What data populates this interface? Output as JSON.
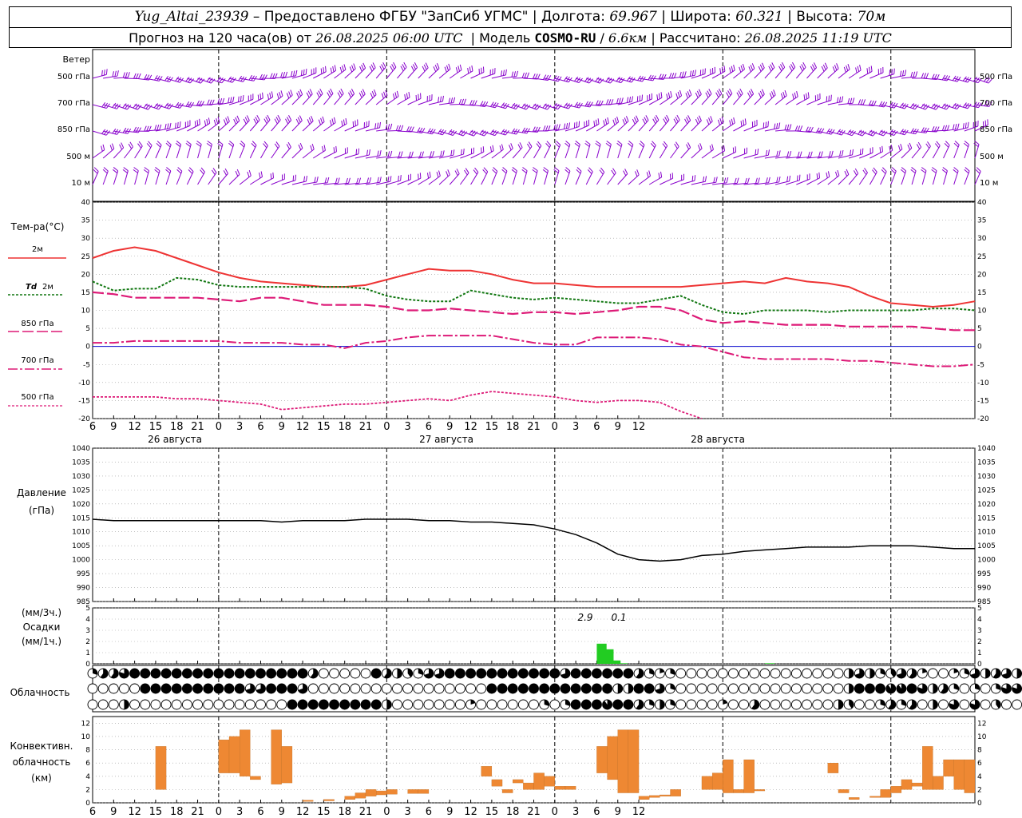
{
  "header": {
    "station": "Yug_Altai_23939",
    "provider": "– Предоставлено ФГБУ \"ЗапСиб УГМС\"",
    "lon_label": "Долгота:",
    "lon": "69.967",
    "lat_label": "Широта:",
    "lat": "60.321",
    "alt_label": "Высота:",
    "alt": "70м",
    "forecast_prefix": "Прогноз на 120 часа(ов) от",
    "forecast_time": "26.08.2025 06:00 UTC",
    "model_label": "Модель",
    "model": "COSMO-RU",
    "model_res": "6.6км",
    "calc_label": "Рассчитано:",
    "calc_time": "26.08.2025 11:19 UTC"
  },
  "labels": {
    "wind": "Ветер",
    "wind_levels": [
      "500 гПа",
      "700 гПа",
      "850 гПа",
      "500 м",
      "10 м"
    ],
    "temp": "Тем-ра(°С)",
    "t2m": "2м",
    "td_sym": "Td",
    "td_lvl": "2м",
    "t850": "850 гПа",
    "t700": "700 гПа",
    "t500": "500 гПа",
    "pressure": "Давление",
    "pressure_unit": "(гПа)",
    "precip_unit3": "(мм/3ч.)",
    "precip": "Осадки",
    "precip_unit1": "(мм/1ч.)",
    "precip_note1": "2.9",
    "precip_note2": "0.1",
    "cloud": "Облачность",
    "conv1": "Конвективн.",
    "conv2": "облачность",
    "conv3": "(км)"
  },
  "time_axis": {
    "hour_ticks": [
      "6",
      "9",
      "12",
      "15",
      "18",
      "21",
      "0",
      "3",
      "6",
      "9",
      "12",
      "15",
      "18",
      "21",
      "0",
      "3",
      "6",
      "9",
      "12",
      "15",
      "18",
      "21",
      "0",
      "3",
      "6",
      "9",
      "12"
    ],
    "dates": [
      "26 августа",
      "27 августа",
      "28 августа"
    ]
  },
  "colors": {
    "t2m": "#ee3333",
    "td": "#117711",
    "t850": "#dd1a77",
    "wind": "#8800cc",
    "precip": "#22cc22",
    "conv": "#ee8833",
    "zero": "#0000cc"
  },
  "chart_data": [
    {
      "type": "line",
      "title": "Тем-ра(°С)",
      "x_unit": "hours from 26.08.2025 06:00 UTC",
      "ylim": [
        -20,
        40
      ],
      "y_ticks": [
        -20,
        -15,
        -10,
        -5,
        0,
        5,
        10,
        15,
        20,
        25,
        30,
        35,
        40
      ],
      "series": [
        {
          "name": "2м",
          "x": [
            0,
            3,
            6,
            9,
            12,
            15,
            18,
            21,
            24,
            27,
            30,
            33,
            36,
            39,
            42,
            45,
            48,
            51,
            54,
            57,
            60,
            63,
            66,
            69,
            72,
            75,
            78,
            81,
            84,
            87,
            90,
            93,
            96,
            99,
            102,
            105,
            108,
            111,
            114,
            117,
            120,
            123,
            126
          ],
          "values": [
            24.5,
            26.5,
            27.5,
            26.5,
            24.5,
            22.5,
            20.5,
            19,
            18,
            17.5,
            17,
            16.5,
            16.5,
            17,
            18.5,
            20,
            21.5,
            21,
            21,
            20,
            18.5,
            17.5,
            17.5,
            17,
            16.5,
            16.5,
            16.5,
            16.5,
            16.5,
            17,
            17.5,
            18,
            17.5,
            19,
            18,
            17.5,
            16.5,
            14,
            12,
            11.5,
            11,
            11.5,
            12.5
          ]
        },
        {
          "name": "Td 2м",
          "x": [
            0,
            3,
            6,
            9,
            12,
            15,
            18,
            21,
            24,
            27,
            30,
            33,
            36,
            39,
            42,
            45,
            48,
            51,
            54,
            57,
            60,
            63,
            66,
            69,
            72,
            75,
            78,
            81,
            84,
            87,
            90,
            93,
            96,
            99,
            102,
            105,
            108,
            111,
            114,
            117,
            120,
            123,
            126
          ],
          "values": [
            18,
            15.5,
            16,
            16,
            19,
            18.5,
            17,
            16.5,
            16.5,
            16.5,
            16.5,
            16.5,
            16.5,
            16,
            14,
            13,
            12.5,
            12.5,
            15.5,
            14.5,
            13.5,
            13,
            13.5,
            13,
            12.5,
            12,
            12,
            13,
            14,
            11.5,
            9.5,
            9,
            10,
            10,
            10,
            9.5,
            10,
            10,
            10,
            10,
            10.5,
            10.5,
            10
          ]
        },
        {
          "name": "850 гПа",
          "x": [
            0,
            3,
            6,
            9,
            12,
            15,
            18,
            21,
            24,
            27,
            30,
            33,
            36,
            39,
            42,
            45,
            48,
            51,
            54,
            57,
            60,
            63,
            66,
            69,
            72,
            75,
            78,
            81,
            84,
            87,
            90,
            93,
            96,
            99,
            102,
            105,
            108,
            111,
            114,
            117,
            120,
            123,
            126
          ],
          "values": [
            15,
            14.5,
            13.5,
            13.5,
            13.5,
            13.5,
            13,
            12.5,
            13.5,
            13.5,
            12.5,
            11.5,
            11.5,
            11.5,
            11,
            10,
            10,
            10.5,
            10,
            9.5,
            9,
            9.5,
            9.5,
            9,
            9.5,
            10,
            11,
            11,
            10,
            7.5,
            6.5,
            7,
            6.5,
            6,
            6,
            6,
            5.5,
            5.5,
            5.5,
            5.5,
            5,
            4.5,
            4.5
          ]
        },
        {
          "name": "700 гПа",
          "x": [
            0,
            3,
            6,
            9,
            12,
            15,
            18,
            21,
            24,
            27,
            30,
            33,
            36,
            39,
            42,
            45,
            48,
            51,
            54,
            57,
            60,
            63,
            66,
            69,
            72,
            75,
            78,
            81,
            84,
            87,
            90,
            93,
            96,
            99,
            102,
            105,
            108,
            111,
            114,
            117,
            120,
            123,
            126
          ],
          "values": [
            1,
            1,
            1.5,
            1.5,
            1.5,
            1.5,
            1.5,
            1,
            1,
            1,
            0.5,
            0.5,
            -0.5,
            1,
            1.5,
            2.5,
            3,
            3,
            3,
            3,
            2,
            1,
            0.5,
            0.5,
            2.5,
            2.5,
            2.5,
            2,
            0.5,
            0,
            -1.5,
            -3,
            -3.5,
            -3.5,
            -3.5,
            -3.5,
            -4,
            -4,
            -4.5,
            -5,
            -5.5,
            -5.5,
            -5
          ]
        },
        {
          "name": "500 гПа",
          "x": [
            0,
            3,
            6,
            9,
            12,
            15,
            18,
            21,
            24,
            27,
            30,
            33,
            36,
            39,
            42,
            45,
            48,
            51,
            54,
            57,
            60,
            63,
            66,
            69,
            72,
            75,
            78,
            81,
            84,
            87,
            90,
            93,
            96,
            99,
            102,
            105,
            108,
            111,
            114,
            117,
            120,
            123,
            126
          ],
          "values": [
            -14,
            -14,
            -14,
            -14,
            -14.5,
            -14.5,
            -15,
            -15.5,
            -16,
            -17.5,
            -17,
            -16.5,
            -16,
            -16,
            -15.5,
            -15,
            -14.5,
            -15,
            -13.5,
            -12.5,
            -13,
            -13.5,
            -14,
            -15,
            -15.5,
            -15,
            -15,
            -15.5,
            -18,
            -20,
            null,
            null,
            null,
            null,
            null,
            null,
            null,
            null,
            null,
            null,
            null,
            null,
            null
          ]
        }
      ]
    },
    {
      "type": "line",
      "title": "Давление",
      "ylabel": "(гПа)",
      "ylim": [
        985,
        1040
      ],
      "y_ticks": [
        985,
        990,
        995,
        1000,
        1005,
        1010,
        1015,
        1020,
        1025,
        1030,
        1035,
        1040
      ],
      "series": [
        {
          "name": "Давление",
          "x": [
            0,
            3,
            6,
            9,
            12,
            15,
            18,
            21,
            24,
            27,
            30,
            33,
            36,
            39,
            42,
            45,
            48,
            51,
            54,
            57,
            60,
            63,
            66,
            69,
            72,
            75,
            78,
            81,
            84,
            87,
            90,
            93,
            96,
            99,
            102,
            105,
            108,
            111,
            114,
            117,
            120,
            123,
            126
          ],
          "values": [
            1014.5,
            1014,
            1014,
            1014,
            1014,
            1014,
            1014,
            1014,
            1014,
            1013.5,
            1014,
            1014,
            1014,
            1014.5,
            1014.5,
            1014.5,
            1014,
            1014,
            1013.5,
            1013.5,
            1013,
            1012.5,
            1011,
            1009,
            1006,
            1002,
            1000,
            999.5,
            1000,
            1001.5,
            1002,
            1003,
            1003.5,
            1004,
            1004.5,
            1004.5,
            1004.5,
            1005,
            1005,
            1005,
            1004.5,
            1004,
            1004
          ]
        }
      ]
    },
    {
      "type": "bar",
      "title": "Осадки",
      "ylim": [
        0,
        5
      ],
      "y_ticks": [
        0,
        1,
        2,
        3,
        4,
        5
      ],
      "x": [
        72,
        73,
        74,
        75,
        81,
        82,
        83,
        84,
        85,
        86,
        87,
        88,
        89,
        90,
        91,
        92,
        93,
        94,
        95,
        96
      ],
      "values": [
        1.8,
        1.3,
        0.3,
        0.05,
        0,
        0,
        0,
        0,
        0,
        0,
        0,
        0,
        0,
        0,
        0,
        0,
        0,
        0,
        0,
        0.05
      ]
    },
    {
      "type": "bar",
      "title": "Конвективн. облачность",
      "ylabel": "(км)",
      "ylim": [
        0,
        13
      ],
      "y_ticks": [
        0,
        2,
        4,
        6,
        8,
        10,
        12
      ],
      "bars": [
        {
          "x": 9,
          "base": 2,
          "top": 8.5
        },
        {
          "x": 18,
          "base": 4.5,
          "top": 9.5
        },
        {
          "x": 19.5,
          "base": 4.5,
          "top": 10
        },
        {
          "x": 21,
          "base": 4,
          "top": 11
        },
        {
          "x": 22.5,
          "base": 3.5,
          "top": 4
        },
        {
          "x": 25.5,
          "base": 2.8,
          "top": 11
        },
        {
          "x": 27,
          "base": 3,
          "top": 8.5
        },
        {
          "x": 30,
          "base": 0.2,
          "top": 0.4
        },
        {
          "x": 33,
          "base": 0.3,
          "top": 0.5
        },
        {
          "x": 36,
          "base": 0.5,
          "top": 1
        },
        {
          "x": 37.5,
          "base": 0.7,
          "top": 1.5
        },
        {
          "x": 39,
          "base": 1,
          "top": 2
        },
        {
          "x": 40.5,
          "base": 1.2,
          "top": 1.8
        },
        {
          "x": 42,
          "base": 1.3,
          "top": 2
        },
        {
          "x": 45,
          "base": 1.4,
          "top": 2
        },
        {
          "x": 46.5,
          "base": 1.4,
          "top": 2
        },
        {
          "x": 55.5,
          "base": 4,
          "top": 5.5
        },
        {
          "x": 57,
          "base": 2.5,
          "top": 3.5
        },
        {
          "x": 58.5,
          "base": 1.5,
          "top": 2
        },
        {
          "x": 60,
          "base": 3,
          "top": 3.5
        },
        {
          "x": 61.5,
          "base": 2,
          "top": 3
        },
        {
          "x": 63,
          "base": 2,
          "top": 4.5
        },
        {
          "x": 64.5,
          "base": 2.5,
          "top": 4
        },
        {
          "x": 66,
          "base": 2,
          "top": 2.5
        },
        {
          "x": 67.5,
          "base": 2,
          "top": 2.5
        },
        {
          "x": 72,
          "base": 4.5,
          "top": 8.5
        },
        {
          "x": 73.5,
          "base": 3.5,
          "top": 10
        },
        {
          "x": 75,
          "base": 1.5,
          "top": 11
        },
        {
          "x": 76.5,
          "base": 1.5,
          "top": 11
        },
        {
          "x": 78,
          "base": 0.5,
          "top": 1
        },
        {
          "x": 79.5,
          "base": 0.8,
          "top": 1.1
        },
        {
          "x": 81,
          "base": 1,
          "top": 1.2
        },
        {
          "x": 82.5,
          "base": 1,
          "top": 2
        },
        {
          "x": 87,
          "base": 2,
          "top": 4
        },
        {
          "x": 88.5,
          "base": 2,
          "top": 4.5
        },
        {
          "x": 90,
          "base": 1.5,
          "top": 6.5
        },
        {
          "x": 91.5,
          "base": 1.5,
          "top": 2
        },
        {
          "x": 93,
          "base": 1.5,
          "top": 6.5
        },
        {
          "x": 94.5,
          "base": 1.8,
          "top": 2
        },
        {
          "x": 105,
          "base": 4.5,
          "top": 6
        },
        {
          "x": 106.5,
          "base": 1.5,
          "top": 2
        },
        {
          "x": 108,
          "base": 0.5,
          "top": 0.8
        },
        {
          "x": 111,
          "base": 0.8,
          "top": 1
        },
        {
          "x": 112.5,
          "base": 0.8,
          "top": 2
        },
        {
          "x": 114,
          "base": 1.5,
          "top": 2.5
        },
        {
          "x": 115.5,
          "base": 2,
          "top": 3.5
        },
        {
          "x": 117,
          "base": 2.5,
          "top": 3
        },
        {
          "x": 118.5,
          "base": 2,
          "top": 8.5
        },
        {
          "x": 120,
          "base": 2,
          "top": 4
        },
        {
          "x": 121.5,
          "base": 4,
          "top": 6.5
        },
        {
          "x": 123,
          "base": 2,
          "top": 6.5
        },
        {
          "x": 124.5,
          "base": 1.5,
          "top": 6.5
        }
      ]
    },
    {
      "type": "table",
      "title": "Облачность",
      "note": "0 = clear, 1 = overcast; rows top to bottom",
      "rows": [
        "0.3,0.6,0.6,0.8,1,1,1,1,1,1,1,1,1,1,1,1,1,1,1,1,1,0.6,0,0,0,0,0,1,0.6,0.5,0.4,0.3,0.7,0.7,1,1,1,1,1,1,1,1,1,1,1,0.7,1,1,1,1,1,1,0.6,0.3,0.2,0.3,0,0,0,0,0,0,0,0,0,0,0,0,0,0,0,0,0.5,0.7,0.5,0.3,0.4,0.7,0.6,0.2,0,0,0.2,0.3,0.7,0.5,0.6,0.7,0.5,0.8",
        "0,0,0,0,0,1,1,1,1,1,1,1,1,1,1,0.7,0.7,1,1,1,0.7,0,0,0,0,0,0,0,0,0,0,0,0,0,0,0,0,0,1,1,1,1,1,1,1,1,1,1,1,1,0.5,0.5,1,1,0.7,0.3,0,0,0,0,0,0,0,0,0,0,0,0,0,0,0,0,0.5,1,1,1,0.9,0.9,1,0.8,0.5,0.6,0.3,0,0.3,0,0.3,0.8,0.8,0.8",
        "0,0,0,0.5,0,0,0,0,0,0,0,0,0,0,0,0,0,0,0,1,1,1,1,1,1,1,1,1,0.5,0,0,0,0,0,0,0,0.2,0,0,0,0,0,0,0.3,0,0.3,1,1,1,0.9,1,1,0.6,0.3,0.5,0.3,0,0,0,0,0.2,0,0,0.6,0,0,0,0,0,0,0,0.5,0.4,0,0,0.3,0.6,0.3,0.6,0,0.5,0,0.8,0,0.8,0,0.4,0,0"
      ]
    }
  ]
}
